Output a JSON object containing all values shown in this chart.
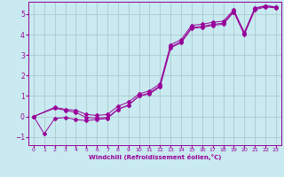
{
  "bg_color": "#c8eaf0",
  "grid_color": "#aacccc",
  "line_color": "#990099",
  "xlabel": "Windchill (Refroidissement éolien,°C)",
  "xlim": [
    -0.5,
    23.5
  ],
  "ylim": [
    -1.4,
    5.6
  ],
  "yticks": [
    -1,
    0,
    1,
    2,
    3,
    4,
    5
  ],
  "xticks": [
    0,
    1,
    2,
    3,
    4,
    5,
    6,
    7,
    8,
    9,
    10,
    11,
    12,
    13,
    14,
    15,
    16,
    17,
    18,
    19,
    20,
    21,
    22,
    23
  ],
  "series": [
    {
      "x": [
        0,
        1,
        2,
        3,
        4,
        5,
        6,
        7,
        8,
        9,
        10,
        11,
        12,
        13,
        14,
        15,
        16,
        17,
        18,
        19,
        20,
        21,
        22,
        23
      ],
      "y": [
        0.0,
        -0.85,
        -0.1,
        -0.05,
        -0.15,
        -0.2,
        -0.15,
        -0.1,
        0.35,
        0.55,
        1.0,
        1.1,
        1.45,
        3.35,
        3.6,
        4.3,
        4.35,
        4.45,
        4.5,
        5.1,
        4.0,
        5.2,
        5.35,
        5.3
      ]
    },
    {
      "x": [
        0,
        2,
        3,
        4,
        5,
        6,
        7,
        8,
        9,
        10,
        11,
        12,
        13,
        14,
        15,
        16,
        17,
        18,
        19,
        20,
        21,
        22,
        23
      ],
      "y": [
        0.0,
        0.4,
        0.3,
        0.2,
        -0.05,
        -0.08,
        -0.05,
        0.35,
        0.55,
        1.0,
        1.15,
        1.5,
        3.4,
        3.65,
        4.35,
        4.4,
        4.5,
        4.55,
        5.15,
        4.05,
        5.25,
        5.4,
        5.35
      ]
    },
    {
      "x": [
        0,
        2,
        3,
        4,
        5,
        6,
        7,
        8,
        9,
        10,
        11,
        12,
        13,
        14,
        15,
        16,
        17,
        18,
        19,
        20,
        21,
        22,
        23
      ],
      "y": [
        0.0,
        0.45,
        0.35,
        0.3,
        0.1,
        0.05,
        0.1,
        0.5,
        0.7,
        1.1,
        1.25,
        1.6,
        3.5,
        3.75,
        4.45,
        4.5,
        4.6,
        4.65,
        5.2,
        4.1,
        5.3,
        5.4,
        5.35
      ]
    }
  ]
}
